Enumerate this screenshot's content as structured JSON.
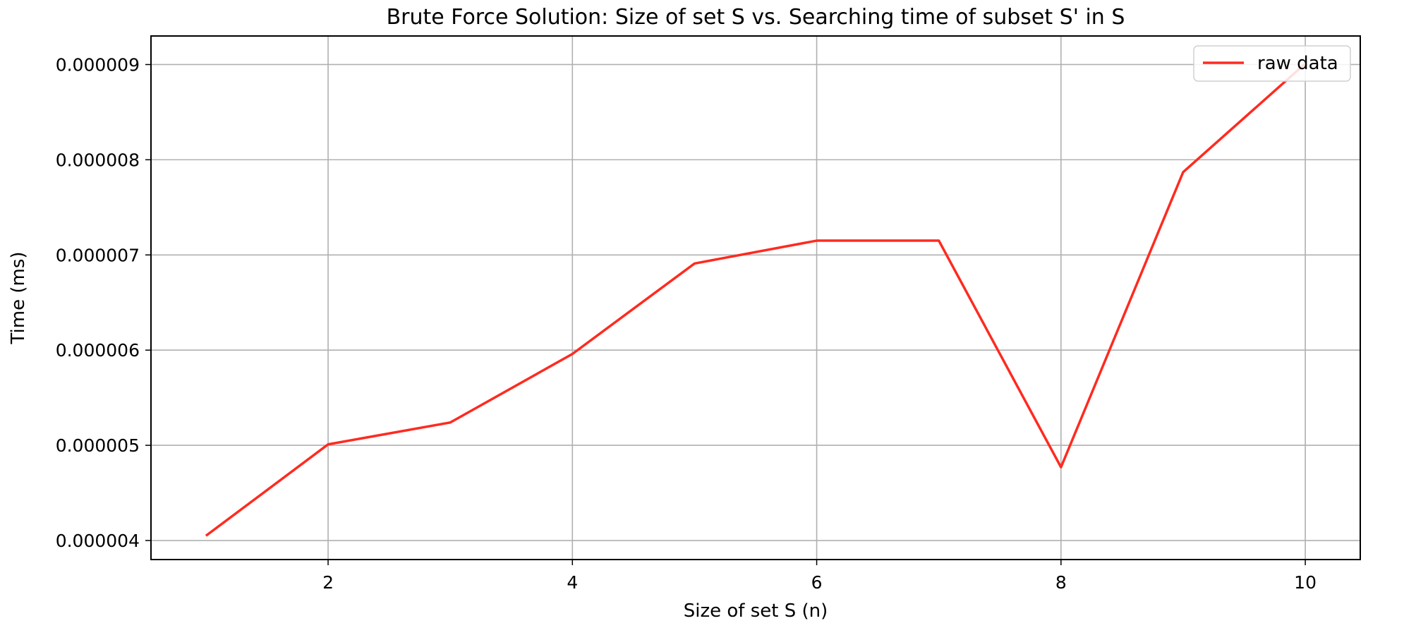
{
  "chart_data": {
    "type": "line",
    "title": "Brute Force Solution: Size of set S vs. Searching time of subset S' in S",
    "xlabel": "Size of set S (n)",
    "ylabel": "Time (ms)",
    "xlim": [
      0.55,
      10.45
    ],
    "ylim": [
      3.8e-06,
      9.3e-06
    ],
    "x_ticks": [
      2,
      4,
      6,
      8,
      10
    ],
    "x_tick_labels": [
      "2",
      "4",
      "6",
      "8",
      "10"
    ],
    "y_ticks": [
      4e-06,
      5e-06,
      6e-06,
      7e-06,
      8e-06,
      9e-06
    ],
    "y_tick_labels": [
      "0.000004",
      "0.000005",
      "0.000006",
      "0.000007",
      "0.000008",
      "0.000009"
    ],
    "grid": true,
    "legend_position": "top-right",
    "series": [
      {
        "name": "raw data",
        "color": "#ff2a1f",
        "x": [
          1,
          2,
          3,
          4,
          5,
          6,
          7,
          8,
          9,
          10
        ],
        "y": [
          4.05e-06,
          5.01e-06,
          5.24e-06,
          5.96e-06,
          6.91e-06,
          7.15e-06,
          7.15e-06,
          4.77e-06,
          7.87e-06,
          9.01e-06
        ]
      }
    ],
    "colors": {
      "grid": "#b0b0b0",
      "axes": "#000000",
      "legend_border": "#d0d0d0"
    }
  }
}
